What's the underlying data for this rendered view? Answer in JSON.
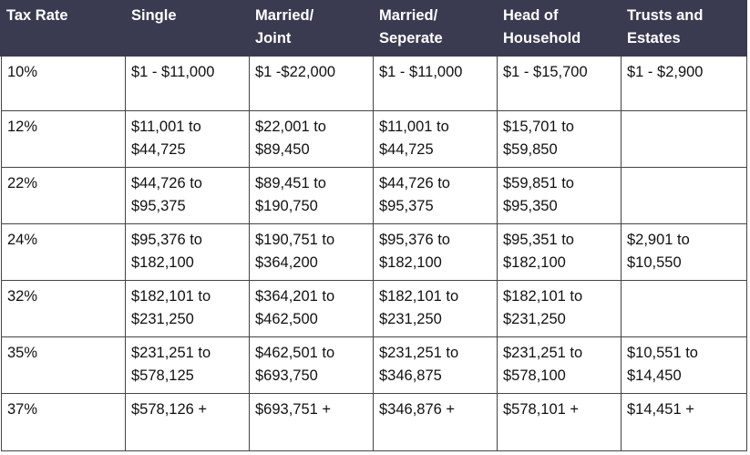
{
  "table": {
    "header": [
      [
        "Tax Rate"
      ],
      [
        "Single"
      ],
      [
        "Married/",
        "Joint"
      ],
      [
        "Married/",
        "Seperate"
      ],
      [
        "Head of",
        "Household"
      ],
      [
        "Trusts and",
        "Estates"
      ]
    ],
    "rows": [
      [
        [
          "10%"
        ],
        [
          "$1 - $11,000"
        ],
        [
          "$1 -$22,000"
        ],
        [
          "$1 - $11,000"
        ],
        [
          "$1 - $15,700"
        ],
        [
          "$1 - $2,900"
        ]
      ],
      [
        [
          "12%"
        ],
        [
          "$11,001 to",
          "$44,725"
        ],
        [
          "$22,001 to",
          "$89,450"
        ],
        [
          "$11,001 to",
          "$44,725"
        ],
        [
          "$15,701 to",
          "$59,850"
        ],
        null
      ],
      [
        [
          "22%"
        ],
        [
          "$44,726 to",
          "$95,375"
        ],
        [
          "$89,451 to",
          "$190,750"
        ],
        [
          "$44,726 to",
          "$95,375"
        ],
        [
          "$59,851 to",
          "$95,350"
        ],
        null
      ],
      [
        [
          "24%"
        ],
        [
          "$95,376 to",
          "$182,100"
        ],
        [
          "$190,751 to",
          "$364,200"
        ],
        [
          "$95,376 to",
          "$182,100"
        ],
        [
          "$95,351 to",
          "$182,100"
        ],
        [
          "$2,901 to",
          "$10,550"
        ]
      ],
      [
        [
          "32%"
        ],
        [
          "$182,101 to",
          "$231,250"
        ],
        [
          "$364,201 to",
          "$462,500"
        ],
        [
          "$182,101 to",
          "$231,250"
        ],
        [
          "$182,101 to",
          "$231,250"
        ],
        null
      ],
      [
        [
          "35%"
        ],
        [
          "$231,251 to",
          "$578,125"
        ],
        [
          "$462,501 to",
          "$693,750"
        ],
        [
          "$231,251 to",
          "$346,875"
        ],
        [
          "$231,251 to",
          "$578,100"
        ],
        [
          "$10,551 to",
          "$14,450"
        ]
      ],
      [
        [
          "37%"
        ],
        [
          "$578,126 +"
        ],
        [
          "$693,751 +"
        ],
        [
          "$346,876 +"
        ],
        [
          "$578,101 +"
        ],
        [
          "$14,451 +"
        ]
      ]
    ]
  }
}
